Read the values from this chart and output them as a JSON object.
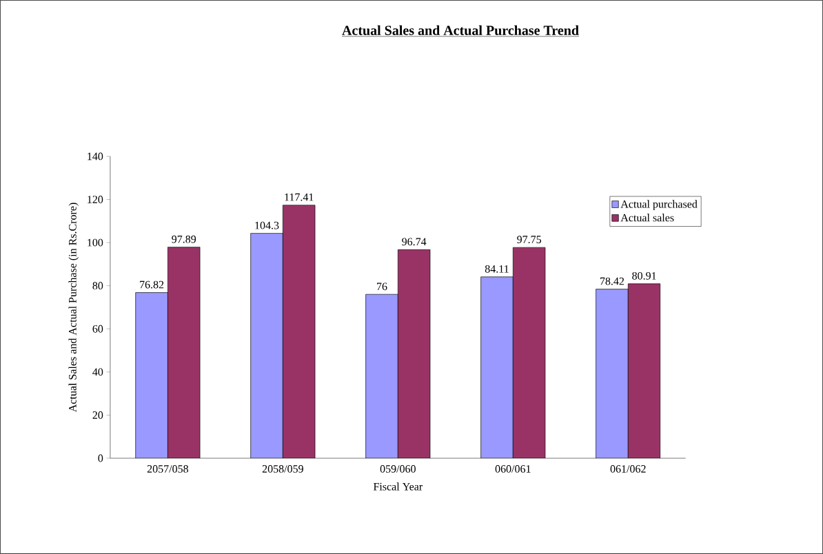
{
  "chart_data": {
    "type": "bar",
    "title": "Actual Sales and Actual Purchase Trend",
    "xlabel": "Fiscal Year",
    "ylabel": "Actual Sales and Actual Purchase (in Rs.Crore)",
    "categories": [
      "2057/058",
      "2058/059",
      "059/060",
      "060/061",
      "061/062"
    ],
    "series": [
      {
        "name": "Actual purchased",
        "color": "#9999ff",
        "values": [
          76.82,
          104.3,
          76,
          84.11,
          78.42
        ]
      },
      {
        "name": "Actual sales",
        "color": "#993366",
        "values": [
          97.89,
          117.41,
          96.74,
          97.75,
          80.91
        ]
      }
    ],
    "ylim": [
      0,
      140
    ],
    "yticks": [
      0,
      20,
      40,
      60,
      80,
      100,
      120,
      140
    ],
    "grid": false,
    "legend": "right",
    "data_labels": true
  }
}
